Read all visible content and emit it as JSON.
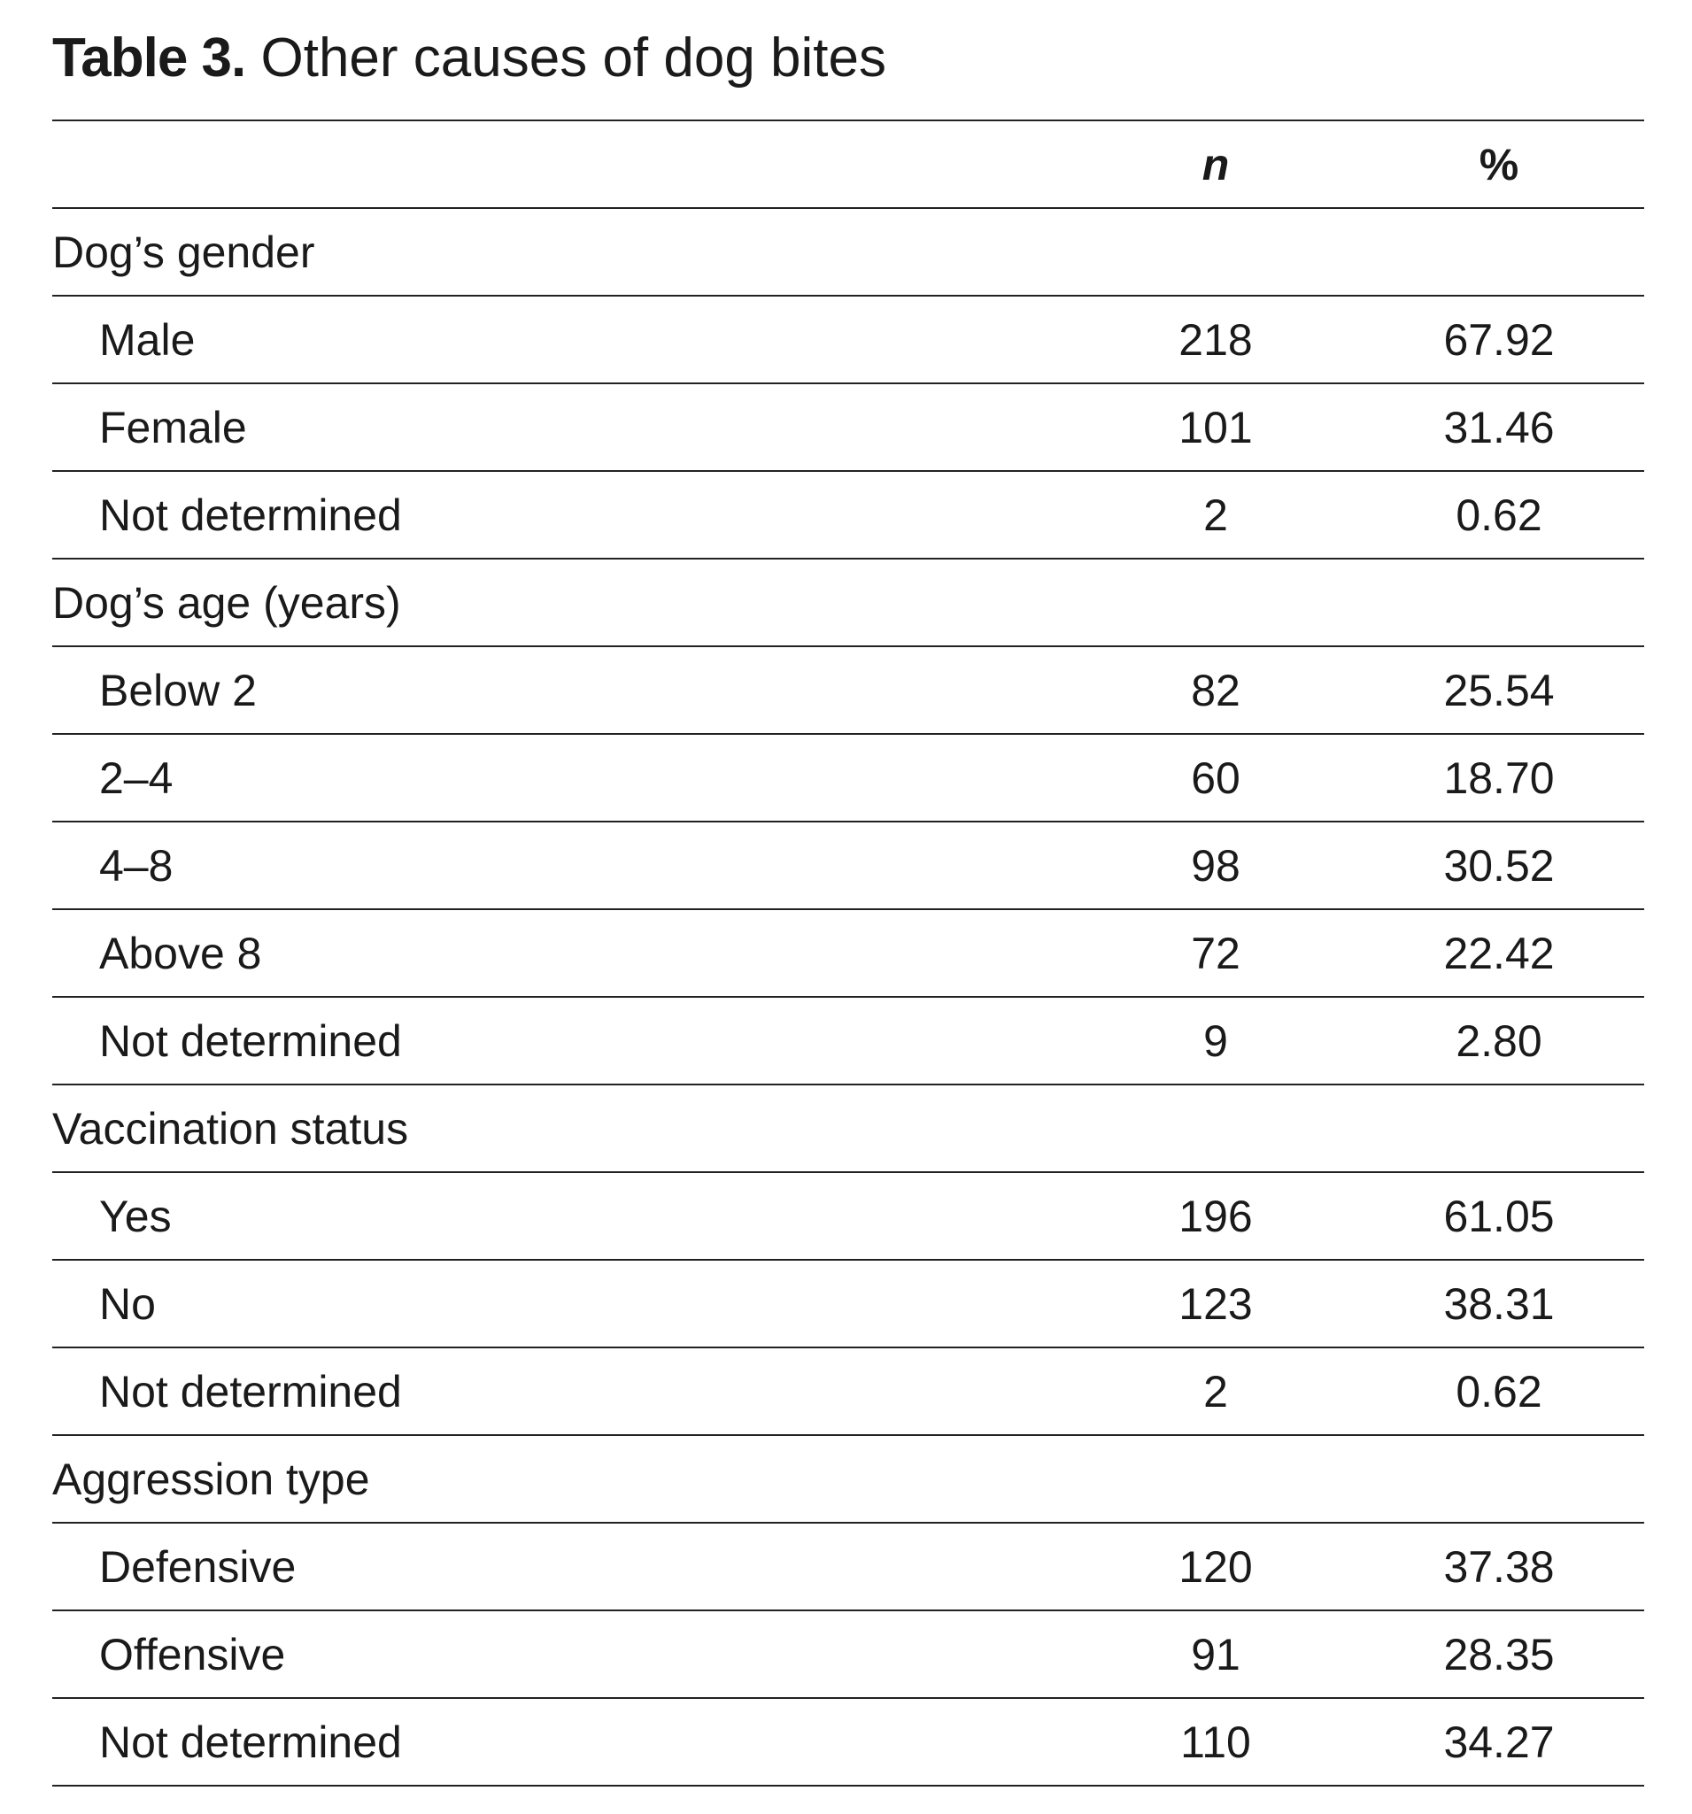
{
  "title": {
    "label": "Table 3.",
    "text": " Other causes of dog bites"
  },
  "table": {
    "headers": [
      "",
      "n",
      "%"
    ],
    "groups": [
      {
        "label": "Dog’s gender",
        "rows": [
          {
            "label": "Male",
            "n": "218",
            "pct": "67.92"
          },
          {
            "label": "Female",
            "n": "101",
            "pct": "31.46"
          },
          {
            "label": "Not determined",
            "n": "2",
            "pct": "0.62"
          }
        ]
      },
      {
        "label": "Dog’s age (years)",
        "rows": [
          {
            "label": "Below 2",
            "n": "82",
            "pct": "25.54"
          },
          {
            "label": "2–4",
            "n": "60",
            "pct": "18.70"
          },
          {
            "label": "4–8",
            "n": "98",
            "pct": "30.52"
          },
          {
            "label": "Above 8",
            "n": "72",
            "pct": "22.42"
          },
          {
            "label": "Not determined",
            "n": "9",
            "pct": "2.80"
          }
        ]
      },
      {
        "label": "Vaccination status",
        "rows": [
          {
            "label": "Yes",
            "n": "196",
            "pct": "61.05"
          },
          {
            "label": "No",
            "n": "123",
            "pct": "38.31"
          },
          {
            "label": "Not determined",
            "n": "2",
            "pct": "0.62"
          }
        ]
      },
      {
        "label": "Aggression type",
        "rows": [
          {
            "label": "Defensive",
            "n": "120",
            "pct": "37.38"
          },
          {
            "label": "Offensive",
            "n": "91",
            "pct": "28.35"
          },
          {
            "label": "Not determined",
            "n": "110",
            "pct": "34.27"
          }
        ]
      }
    ]
  }
}
